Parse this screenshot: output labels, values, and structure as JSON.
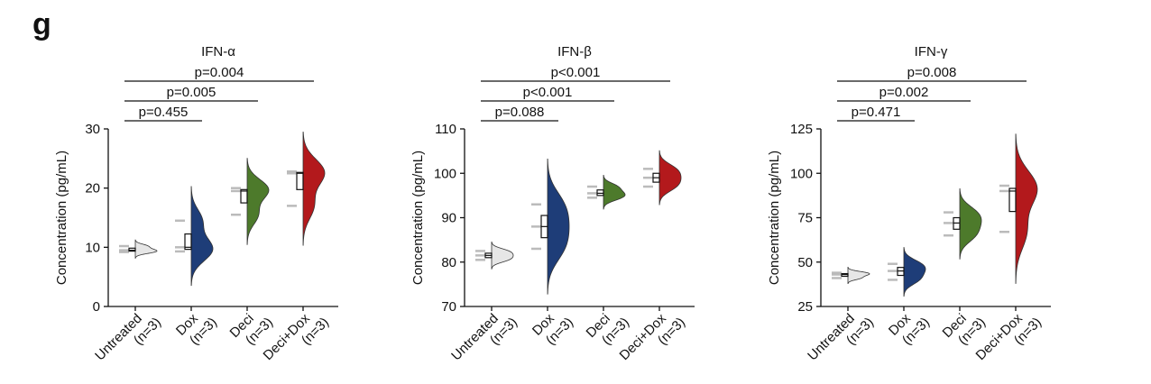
{
  "panel_label": "g",
  "chart_data": [
    {
      "type": "violin",
      "title": "IFN-α",
      "ylabel": "Concentration (pg/mL)",
      "categories": [
        [
          "Untreated",
          "(n=3)"
        ],
        [
          "Dox",
          "(n=3)"
        ],
        [
          "Deci",
          "(n=3)"
        ],
        [
          "Deci+Dox",
          "(n=3)"
        ]
      ],
      "series": [
        {
          "color": "#e6e6e6",
          "values": [
            9.2,
            9.5,
            10.2
          ]
        },
        {
          "color": "#1e3d78",
          "values": [
            9.3,
            10.0,
            14.5
          ]
        },
        {
          "color": "#4d7a2b",
          "values": [
            15.5,
            19.5,
            20.0
          ]
        },
        {
          "color": "#b3191c",
          "values": [
            17.0,
            22.5,
            22.8
          ]
        }
      ],
      "ylim": [
        0,
        30
      ],
      "yticks": [
        0,
        10,
        20,
        30
      ],
      "comparisons": [
        {
          "label": "p=0.455",
          "pair": [
            0,
            1
          ]
        },
        {
          "label": "p=0.005",
          "pair": [
            0,
            2
          ]
        },
        {
          "label": "p=0.004",
          "pair": [
            0,
            3
          ]
        }
      ]
    },
    {
      "type": "violin",
      "title": "IFN-β",
      "ylabel": "Concentration (pg/mL)",
      "categories": [
        [
          "Untreated",
          "(n=3)"
        ],
        [
          "Dox",
          "(n=3)"
        ],
        [
          "Deci",
          "(n=3)"
        ],
        [
          "Deci+Dox",
          "(n=3)"
        ]
      ],
      "series": [
        {
          "color": "#e6e6e6",
          "values": [
            80.5,
            81.5,
            82.5
          ]
        },
        {
          "color": "#1e3d78",
          "values": [
            83.0,
            88.0,
            93.0
          ]
        },
        {
          "color": "#4d7a2b",
          "values": [
            94.5,
            95.5,
            97.0
          ]
        },
        {
          "color": "#b3191c",
          "values": [
            97.0,
            99.0,
            101.0
          ]
        }
      ],
      "ylim": [
        70,
        110
      ],
      "yticks": [
        70,
        80,
        90,
        100,
        110
      ],
      "comparisons": [
        {
          "label": "p=0.088",
          "pair": [
            0,
            1
          ]
        },
        {
          "label": "p<0.001",
          "pair": [
            0,
            2
          ]
        },
        {
          "label": "p<0.001",
          "pair": [
            0,
            3
          ]
        }
      ]
    },
    {
      "type": "violin",
      "title": "IFN-γ",
      "ylabel": "Concentration (pg/mL)",
      "categories": [
        [
          "Untreated",
          "(n=3)"
        ],
        [
          "Dox",
          "(n=3)"
        ],
        [
          "Deci",
          "(n=3)"
        ],
        [
          "Deci+Dox",
          "(n=3)"
        ]
      ],
      "series": [
        {
          "color": "#e6e6e6",
          "values": [
            41.0,
            43.0,
            44.0
          ]
        },
        {
          "color": "#1e3d78",
          "values": [
            40.0,
            45.0,
            49.0
          ]
        },
        {
          "color": "#4d7a2b",
          "values": [
            65.0,
            72.0,
            78.0
          ]
        },
        {
          "color": "#b3191c",
          "values": [
            67.0,
            90.0,
            93.0
          ]
        }
      ],
      "ylim": [
        25,
        125
      ],
      "yticks": [
        25,
        50,
        75,
        100,
        125
      ],
      "comparisons": [
        {
          "label": "p=0.471",
          "pair": [
            0,
            1
          ]
        },
        {
          "label": "p=0.002",
          "pair": [
            0,
            2
          ]
        },
        {
          "label": "p=0.008",
          "pair": [
            0,
            3
          ]
        }
      ]
    }
  ]
}
